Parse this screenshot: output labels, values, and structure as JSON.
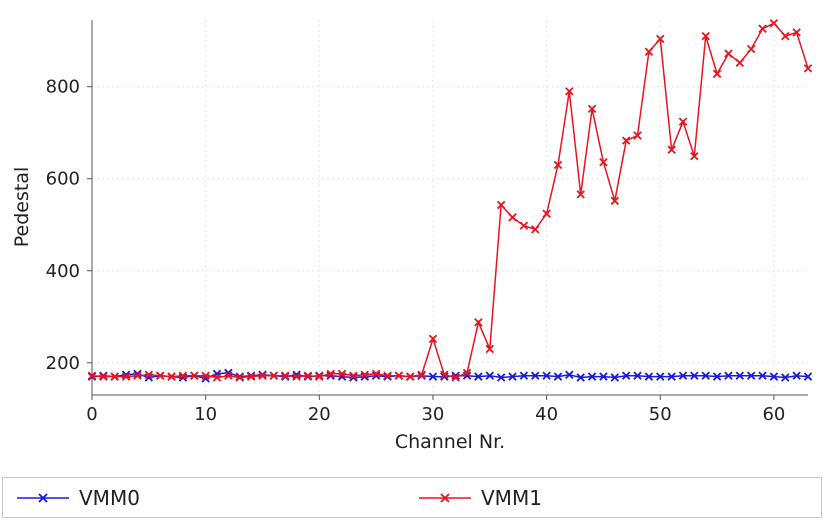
{
  "chart_data": {
    "type": "line",
    "title": "",
    "xlabel": "Channel Nr.",
    "ylabel": "Pedestal",
    "xlim": [
      0,
      63
    ],
    "ylim": [
      130,
      945
    ],
    "x_ticks": [
      0,
      10,
      20,
      30,
      40,
      50,
      60
    ],
    "y_ticks": [
      200,
      400,
      600,
      800
    ],
    "grid": true,
    "legend_position": "bottom",
    "series": [
      {
        "name": "VMM0",
        "color": "#1a1adc",
        "marker": "x",
        "x": [
          0,
          1,
          2,
          3,
          4,
          5,
          6,
          7,
          8,
          9,
          10,
          11,
          12,
          13,
          14,
          15,
          16,
          17,
          18,
          19,
          20,
          21,
          22,
          23,
          24,
          25,
          26,
          27,
          28,
          29,
          30,
          31,
          32,
          33,
          34,
          35,
          36,
          37,
          38,
          39,
          40,
          41,
          42,
          43,
          44,
          45,
          46,
          47,
          48,
          49,
          50,
          51,
          52,
          53,
          54,
          55,
          56,
          57,
          58,
          59,
          60,
          61,
          62,
          63
        ],
        "values": [
          170,
          172,
          170,
          174,
          176,
          168,
          172,
          170,
          168,
          172,
          166,
          176,
          178,
          170,
          172,
          174,
          172,
          170,
          174,
          170,
          172,
          172,
          170,
          168,
          170,
          172,
          170,
          172,
          170,
          172,
          170,
          170,
          172,
          172,
          170,
          172,
          168,
          170,
          172,
          172,
          172,
          170,
          174,
          168,
          170,
          170,
          168,
          172,
          172,
          170,
          170,
          170,
          172,
          172,
          172,
          170,
          172,
          172,
          172,
          172,
          170,
          168,
          172,
          170
        ]
      },
      {
        "name": "VMM1",
        "color": "#e8141e",
        "marker": "x",
        "x": [
          0,
          1,
          2,
          3,
          4,
          5,
          6,
          7,
          8,
          9,
          10,
          11,
          12,
          13,
          14,
          15,
          16,
          17,
          18,
          19,
          20,
          21,
          22,
          23,
          24,
          25,
          26,
          27,
          28,
          29,
          30,
          31,
          32,
          33,
          34,
          35,
          36,
          37,
          38,
          39,
          40,
          41,
          42,
          43,
          44,
          45,
          46,
          47,
          48,
          49,
          50,
          51,
          52,
          53,
          54,
          55,
          56,
          57,
          58,
          59,
          60,
          61,
          62,
          63
        ],
        "values": [
          172,
          170,
          170,
          170,
          172,
          174,
          172,
          170,
          172,
          172,
          172,
          168,
          172,
          168,
          170,
          172,
          172,
          172,
          170,
          172,
          170,
          176,
          176,
          172,
          174,
          176,
          172,
          172,
          170,
          174,
          252,
          174,
          168,
          178,
          288,
          230,
          543,
          516,
          498,
          490,
          524,
          630,
          790,
          566,
          752,
          636,
          552,
          683,
          694,
          876,
          904,
          663,
          724,
          649,
          910,
          828,
          872,
          852,
          882,
          926,
          938,
          910,
          918,
          840
        ]
      }
    ]
  }
}
